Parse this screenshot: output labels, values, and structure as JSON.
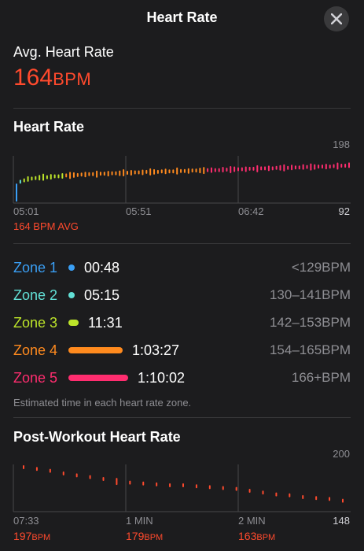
{
  "header": {
    "title": "Heart Rate",
    "close_icon": "xmark-icon"
  },
  "avg": {
    "label": "Avg. Heart Rate",
    "value": "164",
    "unit": "BPM"
  },
  "hr_chart": {
    "title": "Heart Rate",
    "y_max_label": "198",
    "y_min_label": "92",
    "x_labels": [
      "05:01",
      "05:51",
      "06:42"
    ],
    "avg_label": "164 BPM AVG"
  },
  "zones": [
    {
      "name": "Zone 1",
      "time": "00:48",
      "range": "<129BPM",
      "color": "#3a9ff5",
      "fraction": 0.011
    },
    {
      "name": "Zone 2",
      "time": "05:15",
      "range": "130–141BPM",
      "color": "#62e0d6",
      "fraction": 0.075
    },
    {
      "name": "Zone 3",
      "time": "11:31",
      "range": "142–153BPM",
      "color": "#bde52a",
      "fraction": 0.165
    },
    {
      "name": "Zone 4",
      "time": "1:03:27",
      "range": "154–165BPM",
      "color": "#ff8a1e",
      "fraction": 0.906
    },
    {
      "name": "Zone 5",
      "time": "1:10:02",
      "range": "166+BPM",
      "color": "#ff2d6f",
      "fraction": 1.0
    }
  ],
  "zone_note": "Estimated time in each heart rate zone.",
  "post_chart": {
    "title": "Post-Workout Heart Rate",
    "y_max_label": "200",
    "y_min_label": "148",
    "x_labels": [
      "07:33",
      "1 MIN",
      "2 MIN"
    ],
    "readings": [
      {
        "value": "197",
        "unit": "BPM"
      },
      {
        "value": "179",
        "unit": "BPM"
      },
      {
        "value": "163",
        "unit": "BPM"
      }
    ]
  },
  "chart_data": [
    {
      "type": "line",
      "title": "Heart Rate",
      "x_ticks": [
        "05:01",
        "05:51",
        "06:42"
      ],
      "ylim": [
        92,
        198
      ],
      "average": 164,
      "series": [
        {
          "values": [
            128,
            140,
            143,
            146,
            147,
            148,
            149,
            150,
            150,
            151,
            152,
            152,
            153,
            154,
            154,
            155,
            155,
            156,
            156,
            157,
            157,
            157,
            158,
            158,
            158,
            159,
            159,
            159,
            160,
            160,
            160,
            161,
            161,
            161,
            162,
            162,
            162,
            162,
            163,
            163,
            163,
            163,
            164,
            164,
            164,
            164,
            165,
            165,
            165,
            165,
            166,
            166,
            166,
            166,
            167,
            167,
            167,
            168,
            168,
            168,
            168,
            169,
            169,
            169,
            170,
            170,
            170,
            170,
            171,
            171,
            171,
            171,
            172,
            172,
            172,
            173,
            173,
            173,
            173,
            174,
            174,
            174,
            174,
            175,
            175,
            176,
            176,
            177
          ]
        }
      ]
    },
    {
      "type": "scatter",
      "title": "Post-Workout Heart Rate",
      "x_ticks": [
        "07:33",
        "1 MIN",
        "2 MIN"
      ],
      "ylim": [
        148,
        200
      ],
      "series": [
        {
          "values": [
            197,
            195,
            193,
            190,
            188,
            186,
            184,
            183,
            180,
            179,
            178,
            177,
            177,
            176,
            175,
            174,
            173,
            171,
            169,
            167,
            166,
            164,
            163,
            162,
            160
          ]
        }
      ]
    }
  ]
}
